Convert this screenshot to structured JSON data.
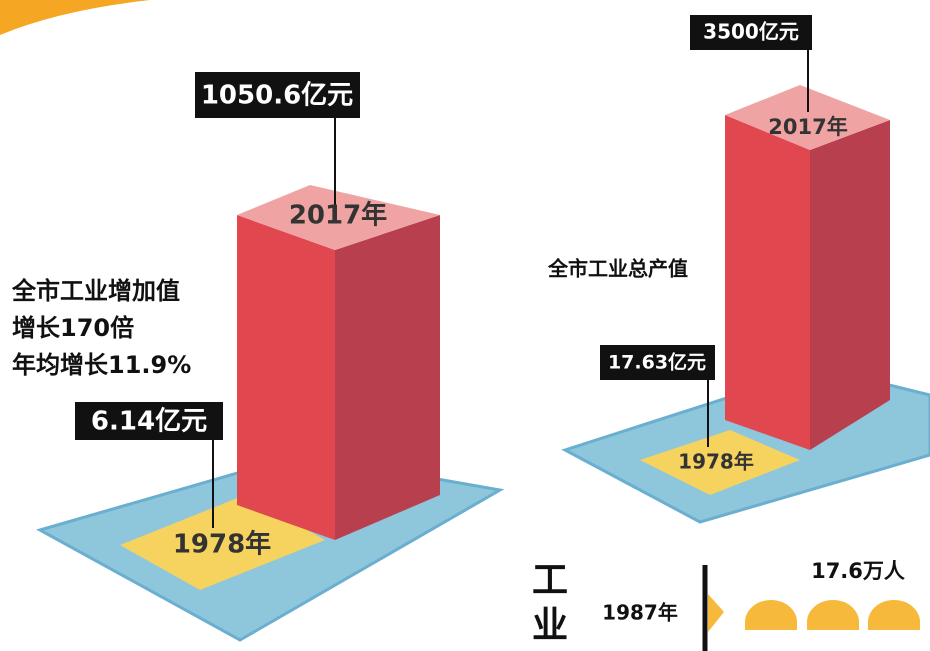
{
  "left_panel": {
    "top_value": "1050.6亿元",
    "top_year": "2017年",
    "caption": [
      "全市工业增加值",
      "增长170倍",
      "年均增长11.9%"
    ],
    "base_value": "6.14亿元",
    "base_year": "1978年"
  },
  "right_panel": {
    "top_value": "3500亿元",
    "top_year": "2017年",
    "caption": "全市工业总产值",
    "base_value": "17.63亿元",
    "base_year": "1978年"
  },
  "bottom_section": {
    "heading_chars": [
      "工",
      "业"
    ],
    "year": "1987年",
    "workers": "17.6万人"
  }
}
